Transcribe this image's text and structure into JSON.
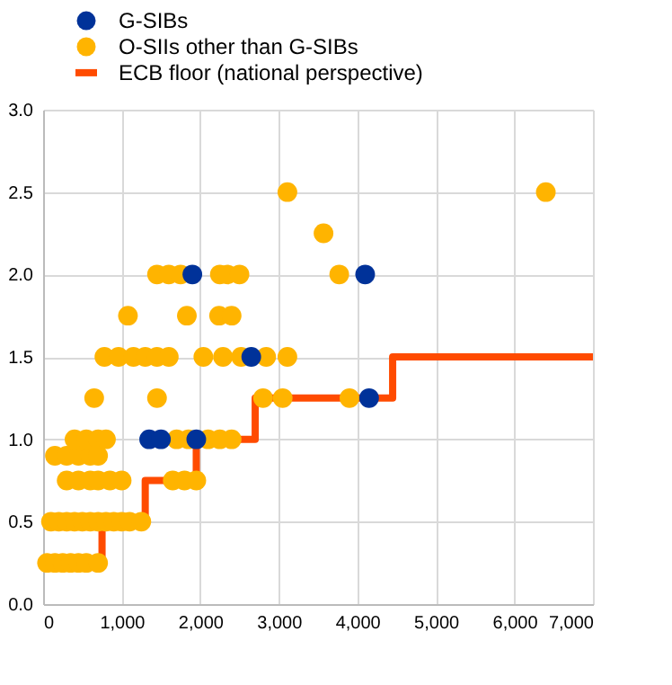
{
  "chart_data": {
    "type": "scatter",
    "legend": "top left",
    "grid": true,
    "marker": "circle",
    "xlim": [
      0,
      7000
    ],
    "ylim": [
      0,
      3
    ],
    "xticks": [
      0,
      {
        "value": 1000,
        "label": "1,000"
      },
      {
        "value": 2000,
        "label": "2,000"
      },
      {
        "value": 3000,
        "label": "3,000"
      },
      {
        "value": 4000,
        "label": "4,000"
      },
      {
        "value": 5000,
        "label": "5,000"
      },
      {
        "value": 6000,
        "label": "6,000"
      },
      {
        "value": 7000,
        "label": "7,000"
      }
    ],
    "yticks": [
      {
        "value": 0,
        "label": "0.0"
      },
      {
        "value": 0.5,
        "label": "0.5"
      },
      {
        "value": 1,
        "label": "1.0"
      },
      {
        "value": 1.5,
        "label": "1.5"
      },
      {
        "value": 2,
        "label": "2.0"
      },
      {
        "value": 2.5,
        "label": "2.5"
      },
      {
        "value": 3,
        "label": "3.0"
      }
    ],
    "series": [
      {
        "name": "G-SIBs",
        "color": "#003299",
        "x": [
          1900,
          1350,
          1500,
          1950,
          2650,
          4100,
          4150
        ],
        "values": [
          2.0,
          1.0,
          1.0,
          1.0,
          1.5,
          2.0,
          1.25
        ]
      },
      {
        "name": "O-SIIs other than G-SIBs",
        "color": "#ffb400",
        "x": [
          50,
          150,
          250,
          350,
          450,
          550,
          700,
          100,
          200,
          300,
          400,
          500,
          600,
          700,
          800,
          900,
          1000,
          1100,
          1250,
          300,
          450,
          600,
          700,
          850,
          1000,
          1650,
          1800,
          1950,
          150,
          300,
          450,
          600,
          700,
          400,
          550,
          700,
          800,
          1700,
          1850,
          2100,
          2250,
          2400,
          650,
          1450,
          2800,
          3050,
          3900,
          780,
          960,
          1150,
          1300,
          1450,
          1600,
          2040,
          2290,
          2520,
          2840,
          3110,
          1080,
          1830,
          2240,
          2400,
          1450,
          1600,
          1750,
          2250,
          2350,
          2500,
          3770,
          3570,
          3110,
          6400
        ],
        "values": [
          0.25,
          0.25,
          0.25,
          0.25,
          0.25,
          0.25,
          0.25,
          0.5,
          0.5,
          0.5,
          0.5,
          0.5,
          0.5,
          0.5,
          0.5,
          0.5,
          0.5,
          0.5,
          0.5,
          0.75,
          0.75,
          0.75,
          0.75,
          0.75,
          0.75,
          0.75,
          0.75,
          0.75,
          0.9,
          0.9,
          0.9,
          0.9,
          0.9,
          1.0,
          1.0,
          1.0,
          1.0,
          1.0,
          1.0,
          1.0,
          1.0,
          1.0,
          1.25,
          1.25,
          1.25,
          1.25,
          1.25,
          1.5,
          1.5,
          1.5,
          1.5,
          1.5,
          1.5,
          1.5,
          1.5,
          1.5,
          1.5,
          1.5,
          1.75,
          1.75,
          1.75,
          1.75,
          2.0,
          2.0,
          2.0,
          2.0,
          2.0,
          2.0,
          2.0,
          2.25,
          2.5,
          2.5
        ]
      },
      {
        "name": "ECB floor (national perspective)",
        "color": "#ff4b00",
        "type": "step",
        "marker": "none",
        "x": [
          0,
          750,
          1300,
          1950,
          2700,
          4450,
          7000
        ],
        "values": [
          0.25,
          0.5,
          0.75,
          1.0,
          1.25,
          1.5,
          1.5
        ]
      }
    ]
  }
}
